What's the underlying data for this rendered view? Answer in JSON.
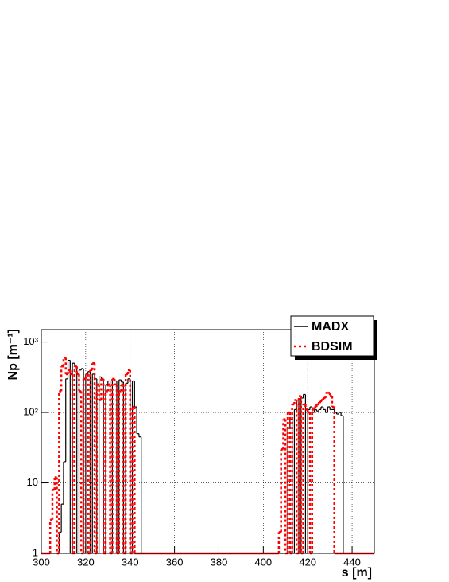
{
  "chart_data": {
    "type": "histogram",
    "xlabel": "s [m]",
    "ylabel": "Np [m⁻¹]",
    "xlim": [
      300,
      450
    ],
    "xticks": [
      300,
      320,
      340,
      360,
      380,
      400,
      420,
      440
    ],
    "ylim": [
      1,
      1500
    ],
    "log_y": true,
    "yticks": [
      1,
      10,
      {
        "value": 100,
        "label": "10²"
      },
      {
        "value": 1000,
        "label": "10³"
      }
    ],
    "grid": true,
    "legend": "top-right",
    "bins": [
      300,
      301,
      302,
      303,
      304,
      305,
      306,
      307,
      308,
      309,
      310,
      311,
      312,
      313,
      314,
      315,
      316,
      317,
      318,
      319,
      320,
      321,
      322,
      323,
      324,
      325,
      326,
      327,
      328,
      329,
      330,
      331,
      332,
      333,
      334,
      335,
      336,
      337,
      338,
      339,
      340,
      341,
      342,
      343,
      344,
      345,
      346,
      347,
      348,
      349,
      350,
      351,
      352,
      353,
      354,
      355,
      356,
      357,
      358,
      359,
      360,
      361,
      362,
      363,
      364,
      365,
      366,
      367,
      368,
      369,
      370,
      371,
      372,
      373,
      374,
      375,
      376,
      377,
      378,
      379,
      380,
      381,
      382,
      383,
      384,
      385,
      386,
      387,
      388,
      389,
      390,
      391,
      392,
      393,
      394,
      395,
      396,
      397,
      398,
      399,
      400,
      401,
      402,
      403,
      404,
      405,
      406,
      407,
      408,
      409,
      410,
      411,
      412,
      413,
      414,
      415,
      416,
      417,
      418,
      419,
      420,
      421,
      422,
      423,
      424,
      425,
      426,
      427,
      428,
      429,
      430,
      431,
      432,
      433,
      434,
      435,
      436,
      437,
      438,
      439,
      440,
      441,
      442,
      443,
      444,
      445,
      446,
      447,
      448,
      449,
      450
    ],
    "series": [
      {
        "name": "MADX",
        "color": "#000000",
        "style": "solid",
        "values": [
          0,
          0,
          0,
          0,
          0,
          0,
          0,
          0,
          2,
          5,
          20,
          300,
          550,
          0,
          500,
          450,
          0,
          400,
          420,
          0,
          350,
          380,
          0,
          350,
          300,
          0,
          320,
          300,
          0,
          250,
          280,
          0,
          300,
          280,
          0,
          290,
          270,
          0,
          260,
          300,
          0,
          280,
          120,
          50,
          45,
          0,
          0,
          0,
          0,
          0,
          0,
          0,
          0,
          0,
          0,
          0,
          0,
          0,
          0,
          0,
          0,
          0,
          0,
          0,
          0,
          0,
          0,
          0,
          0,
          0,
          0,
          0,
          0,
          0,
          0,
          0,
          0,
          0,
          0,
          0,
          0,
          0,
          0,
          0,
          0,
          0,
          0,
          0,
          0,
          0,
          0,
          0,
          0,
          0,
          0,
          0,
          0,
          0,
          0,
          0,
          0,
          0,
          0,
          0,
          0,
          0,
          0,
          0,
          0,
          0,
          0,
          60,
          80,
          0,
          110,
          150,
          0,
          160,
          180,
          0,
          110,
          120,
          100,
          110,
          105,
          110,
          120,
          110,
          100,
          120,
          110,
          110,
          100,
          95,
          100,
          90,
          0,
          0,
          0,
          0,
          0,
          0,
          0,
          0,
          0,
          0,
          0,
          0,
          0,
          0
        ]
      },
      {
        "name": "BDSIM",
        "color": "#ff0000",
        "style": "dotted",
        "values": [
          0,
          0,
          0,
          0,
          3,
          8,
          12,
          0,
          200,
          450,
          600,
          350,
          400,
          350,
          0,
          450,
          350,
          200,
          0,
          300,
          350,
          0,
          400,
          500,
          0,
          250,
          150,
          300,
          0,
          200,
          250,
          0,
          300,
          250,
          0,
          200,
          250,
          0,
          350,
          400,
          0,
          120,
          0,
          0,
          0,
          0,
          0,
          0,
          0,
          0,
          0,
          0,
          0,
          0,
          0,
          0,
          0,
          0,
          0,
          0,
          0,
          0,
          0,
          0,
          0,
          0,
          0,
          0,
          0,
          0,
          0,
          0,
          0,
          0,
          0,
          0,
          0,
          0,
          0,
          0,
          0,
          0,
          0,
          0,
          0,
          0,
          0,
          0,
          0,
          0,
          0,
          0,
          0,
          0,
          0,
          0,
          0,
          0,
          0,
          0,
          0,
          0,
          0,
          0,
          0,
          0,
          0,
          2,
          30,
          80,
          0,
          100,
          0,
          130,
          150,
          0,
          170,
          0,
          130,
          110,
          100,
          0,
          110,
          120,
          130,
          140,
          150,
          160,
          190,
          190,
          170,
          120,
          0,
          0,
          0,
          0,
          0,
          0,
          0,
          0,
          0,
          0,
          0,
          0,
          0,
          0,
          0,
          0,
          0,
          0
        ]
      }
    ]
  }
}
